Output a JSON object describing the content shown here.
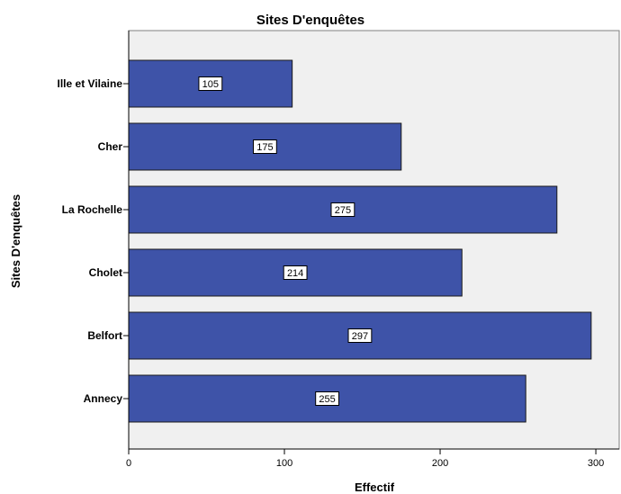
{
  "chart_data": {
    "type": "bar",
    "orientation": "horizontal",
    "title": "Sites D'enquêtes",
    "xlabel": "Effectif",
    "ylabel": "Sites D'enquêtes",
    "categories": [
      "Ille et Vilaine",
      "Cher",
      "La Rochelle",
      "Cholet",
      "Belfort",
      "Annecy"
    ],
    "values": [
      105,
      175,
      275,
      214,
      297,
      255
    ],
    "xlim": [
      0,
      315
    ],
    "xticks": [
      0,
      100,
      200,
      300
    ],
    "grid": false,
    "legend": "none",
    "colors": {
      "bar_fill": "#3e53a8",
      "bar_stroke": "#1a1a1a",
      "plot_background": "#f0f0f0",
      "label_box": "#ffffff"
    }
  }
}
